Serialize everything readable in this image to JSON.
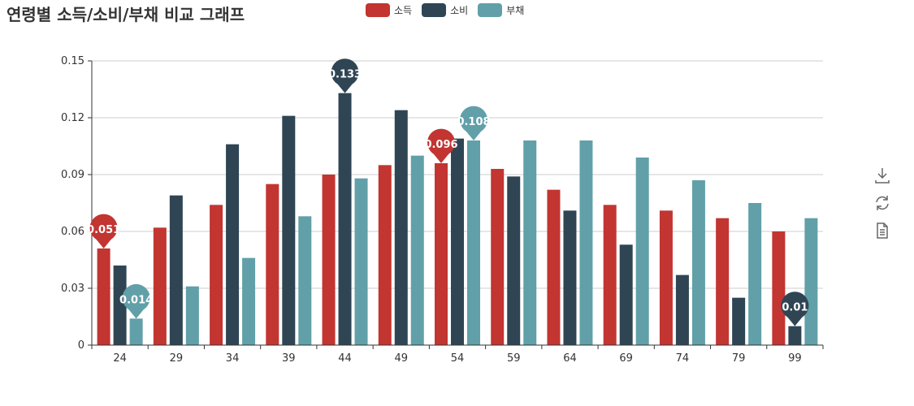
{
  "chart_data": {
    "type": "bar",
    "title": "연령별 소득/소비/부채 비교 그래프",
    "categories": [
      "24",
      "29",
      "34",
      "39",
      "44",
      "49",
      "54",
      "59",
      "64",
      "69",
      "74",
      "79",
      "99"
    ],
    "series": [
      {
        "name": "소득",
        "color": "#c23531",
        "values": [
          0.051,
          0.062,
          0.074,
          0.085,
          0.09,
          0.095,
          0.096,
          0.093,
          0.082,
          0.074,
          0.071,
          0.067,
          0.06
        ]
      },
      {
        "name": "소비",
        "color": "#2f4554",
        "values": [
          0.042,
          0.079,
          0.106,
          0.121,
          0.133,
          0.124,
          0.109,
          0.089,
          0.071,
          0.053,
          0.037,
          0.025,
          0.01
        ]
      },
      {
        "name": "부채",
        "color": "#61a0a8",
        "values": [
          0.014,
          0.031,
          0.046,
          0.068,
          0.088,
          0.1,
          0.108,
          0.108,
          0.108,
          0.099,
          0.087,
          0.075,
          0.067
        ]
      }
    ],
    "markers": [
      {
        "series": 0,
        "category": "24",
        "value": 0.051,
        "label": "0.051"
      },
      {
        "series": 0,
        "category": "54",
        "value": 0.096,
        "label": "0.096"
      },
      {
        "series": 1,
        "category": "44",
        "value": 0.133,
        "label": "0.133"
      },
      {
        "series": 1,
        "category": "99",
        "value": 0.01,
        "label": "0.01"
      },
      {
        "series": 2,
        "category": "24",
        "value": 0.014,
        "label": "0.014"
      },
      {
        "series": 2,
        "category": "54",
        "value": 0.108,
        "label": "0.108"
      }
    ],
    "yticks": [
      "0",
      "0.03",
      "0.06",
      "0.09",
      "0.12",
      "0.15"
    ],
    "ylim": [
      0,
      0.15
    ],
    "grid": true,
    "legend_position": "top-center"
  },
  "toolbox": {
    "icons": [
      "download-icon",
      "refresh-icon",
      "data-view-icon"
    ]
  }
}
